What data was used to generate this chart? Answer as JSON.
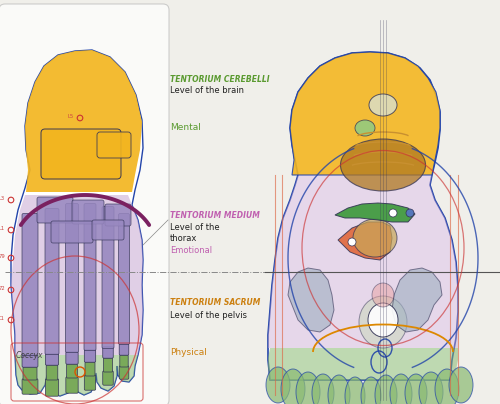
{
  "bg_color": "#f0efea",
  "colors": {
    "green_toes": "#8aba72",
    "purple_foot": "#c8a8d2",
    "yellow_heel": "#f2b520",
    "bone_green": "#7aaa5a",
    "bone_purple": "#9888c0",
    "orange_organ": "#e06030",
    "tan_organ": "#c8a858",
    "dark_green_organ": "#3a9838",
    "blue_outline": "#2244aa",
    "red_line": "#cc3333",
    "dark_purple_line": "#7a2060",
    "orange_label": "#cc8010",
    "green_label": "#5a9a30",
    "purple_label": "#c060b0",
    "gray_organ": "#9daec0",
    "dark_line": "#333355",
    "dark_gray": "#444444",
    "light_pink": "#e8c8e0",
    "intestine_color": "#b07820",
    "bladder_color": "#d0d8c0",
    "heart_color": "#e8a0a0"
  },
  "labels": {
    "tentorium_cerebelli": "TENTORIUM CEREBELLI",
    "level_brain": "Level of the brain",
    "mental": "Mental",
    "tentorium_medium": "TENTORIUM MEDIUM",
    "level_thorax_1": "Level of the",
    "level_thorax_2": "thorax",
    "emotional": "Emotional",
    "tentorium_sacrum": "TENTORIUM SACRUM",
    "level_pelvis": "Level of the pelvis",
    "physical": "Physical",
    "coccyx": "Coccyx"
  }
}
